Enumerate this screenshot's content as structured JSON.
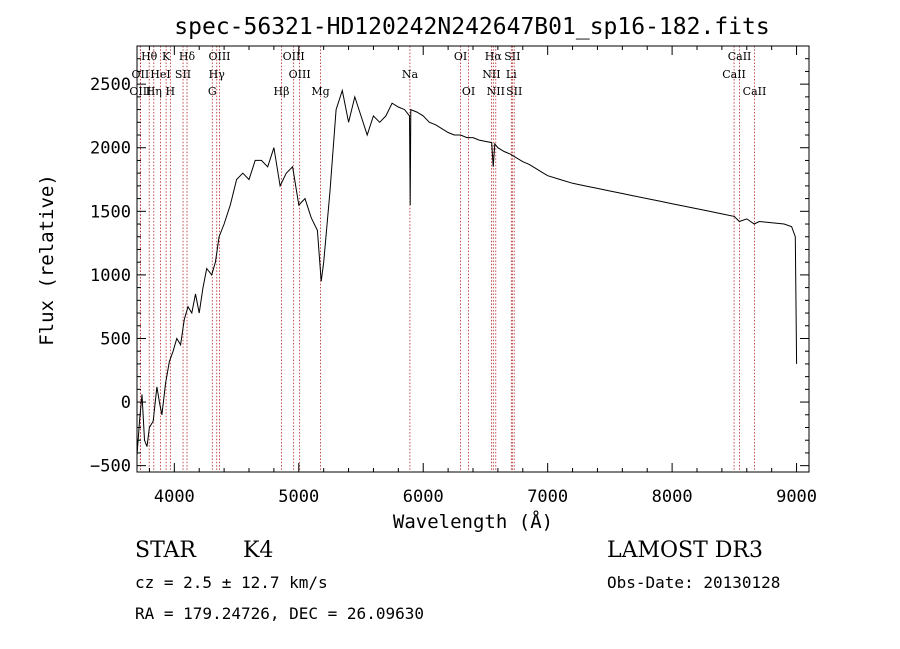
{
  "chart_data": {
    "type": "line",
    "title": "spec-56321-HD120242N242647B01_sp16-182.fits",
    "xlabel": "Wavelength (Å)",
    "ylabel": "Flux (relative)",
    "xlim": [
      3700,
      9100
    ],
    "ylim": [
      -550,
      2800
    ],
    "xticks": [
      4000,
      5000,
      6000,
      7000,
      8000,
      9000
    ],
    "yticks": [
      -500,
      0,
      500,
      1000,
      1500,
      2000,
      2500
    ],
    "xtick_labels": [
      "4000",
      "5000",
      "6000",
      "7000",
      "8000",
      "9000"
    ],
    "ytick_labels": [
      "−500",
      "0",
      "500",
      "1000",
      "1500",
      "2000",
      "2500"
    ],
    "series": [
      {
        "name": "spectrum",
        "color": "#000000",
        "points": [
          [
            3700,
            -420
          ],
          [
            3720,
            -150
          ],
          [
            3740,
            60
          ],
          [
            3760,
            -300
          ],
          [
            3780,
            -350
          ],
          [
            3800,
            -200
          ],
          [
            3830,
            -150
          ],
          [
            3860,
            120
          ],
          [
            3880,
            0
          ],
          [
            3900,
            -100
          ],
          [
            3930,
            150
          ],
          [
            3960,
            320
          ],
          [
            3990,
            400
          ],
          [
            4020,
            500
          ],
          [
            4050,
            450
          ],
          [
            4080,
            650
          ],
          [
            4110,
            750
          ],
          [
            4140,
            700
          ],
          [
            4170,
            850
          ],
          [
            4200,
            700
          ],
          [
            4230,
            900
          ],
          [
            4260,
            1050
          ],
          [
            4300,
            1000
          ],
          [
            4330,
            1100
          ],
          [
            4360,
            1300
          ],
          [
            4400,
            1400
          ],
          [
            4450,
            1550
          ],
          [
            4500,
            1750
          ],
          [
            4550,
            1800
          ],
          [
            4600,
            1750
          ],
          [
            4650,
            1900
          ],
          [
            4700,
            1900
          ],
          [
            4750,
            1850
          ],
          [
            4800,
            2000
          ],
          [
            4850,
            1700
          ],
          [
            4900,
            1800
          ],
          [
            4950,
            1850
          ],
          [
            5000,
            1550
          ],
          [
            5050,
            1600
          ],
          [
            5100,
            1450
          ],
          [
            5150,
            1350
          ],
          [
            5180,
            950
          ],
          [
            5200,
            1100
          ],
          [
            5250,
            1650
          ],
          [
            5300,
            2300
          ],
          [
            5350,
            2450
          ],
          [
            5400,
            2200
          ],
          [
            5450,
            2400
          ],
          [
            5500,
            2250
          ],
          [
            5550,
            2100
          ],
          [
            5600,
            2250
          ],
          [
            5650,
            2200
          ],
          [
            5700,
            2250
          ],
          [
            5750,
            2350
          ],
          [
            5800,
            2320
          ],
          [
            5850,
            2300
          ],
          [
            5890,
            2250
          ],
          [
            5895,
            1550
          ],
          [
            5900,
            2300
          ],
          [
            5950,
            2280
          ],
          [
            6000,
            2250
          ],
          [
            6050,
            2200
          ],
          [
            6100,
            2180
          ],
          [
            6150,
            2150
          ],
          [
            6200,
            2120
          ],
          [
            6250,
            2100
          ],
          [
            6300,
            2100
          ],
          [
            6350,
            2080
          ],
          [
            6400,
            2080
          ],
          [
            6450,
            2060
          ],
          [
            6500,
            2050
          ],
          [
            6550,
            2040
          ],
          [
            6562,
            1850
          ],
          [
            6575,
            2030
          ],
          [
            6600,
            2000
          ],
          [
            6650,
            1970
          ],
          [
            6700,
            1950
          ],
          [
            6750,
            1920
          ],
          [
            6800,
            1890
          ],
          [
            6850,
            1870
          ],
          [
            6900,
            1840
          ],
          [
            6950,
            1810
          ],
          [
            7000,
            1780
          ],
          [
            7100,
            1750
          ],
          [
            7200,
            1720
          ],
          [
            7300,
            1700
          ],
          [
            7400,
            1680
          ],
          [
            7500,
            1660
          ],
          [
            7600,
            1640
          ],
          [
            7700,
            1620
          ],
          [
            7800,
            1600
          ],
          [
            7900,
            1580
          ],
          [
            8000,
            1560
          ],
          [
            8100,
            1540
          ],
          [
            8200,
            1520
          ],
          [
            8300,
            1500
          ],
          [
            8400,
            1480
          ],
          [
            8500,
            1460
          ],
          [
            8540,
            1420
          ],
          [
            8600,
            1440
          ],
          [
            8660,
            1400
          ],
          [
            8700,
            1420
          ],
          [
            8800,
            1410
          ],
          [
            8900,
            1400
          ],
          [
            8960,
            1380
          ],
          [
            8990,
            1300
          ],
          [
            9000,
            300
          ]
        ]
      }
    ],
    "line_markers": [
      {
        "label": "Hθ",
        "wavelength": 3798,
        "row": 0
      },
      {
        "label": "K",
        "wavelength": 3934,
        "row": 0
      },
      {
        "label": "Hδ",
        "wavelength": 4102,
        "row": 0
      },
      {
        "label": "OIII",
        "wavelength": 4363,
        "row": 0
      },
      {
        "label": "OIII",
        "wavelength": 4959,
        "row": 0
      },
      {
        "label": "OI",
        "wavelength": 6300,
        "row": 0
      },
      {
        "label": "Hα",
        "wavelength": 6563,
        "row": 0
      },
      {
        "label": "SII",
        "wavelength": 6716,
        "row": 0
      },
      {
        "label": "CaII",
        "wavelength": 8542,
        "row": 0
      },
      {
        "label": "OII",
        "wavelength": 3727,
        "row": 1
      },
      {
        "label": "HeI",
        "wavelength": 3889,
        "row": 1
      },
      {
        "label": "SII",
        "wavelength": 4070,
        "row": 1
      },
      {
        "label": "Hγ",
        "wavelength": 4341,
        "row": 1
      },
      {
        "label": "OIII",
        "wavelength": 5007,
        "row": 1
      },
      {
        "label": "NII",
        "wavelength": 6548,
        "row": 1
      },
      {
        "label": "Li",
        "wavelength": 6708,
        "row": 1
      },
      {
        "label": "CaII",
        "wavelength": 8498,
        "row": 1
      },
      {
        "label": "OIII",
        "wavelength": 3727,
        "row": 2
      },
      {
        "label": "Hη",
        "wavelength": 3835,
        "row": 2
      },
      {
        "label": "H",
        "wavelength": 3968,
        "row": 2
      },
      {
        "label": "G",
        "wavelength": 4305,
        "row": 2
      },
      {
        "label": "Hβ",
        "wavelength": 4861,
        "row": 2
      },
      {
        "label": "Mg",
        "wavelength": 5175,
        "row": 2
      },
      {
        "label": "OI",
        "wavelength": 6364,
        "row": 2
      },
      {
        "label": "NII",
        "wavelength": 6583,
        "row": 2
      },
      {
        "label": "SII",
        "wavelength": 6731,
        "row": 2
      },
      {
        "label": "CaII",
        "wavelength": 8662,
        "row": 2
      },
      {
        "label": "Na",
        "wavelength": 5893,
        "row": 1
      }
    ]
  },
  "info": {
    "class": "STAR",
    "subclass": "K4",
    "survey": "LAMOST DR3",
    "redshift": "cz = 2.5 ± 12.7 km/s",
    "obs_date": "Obs-Date: 20130128",
    "coords": "RA = 179.24726, DEC =  26.09630"
  }
}
